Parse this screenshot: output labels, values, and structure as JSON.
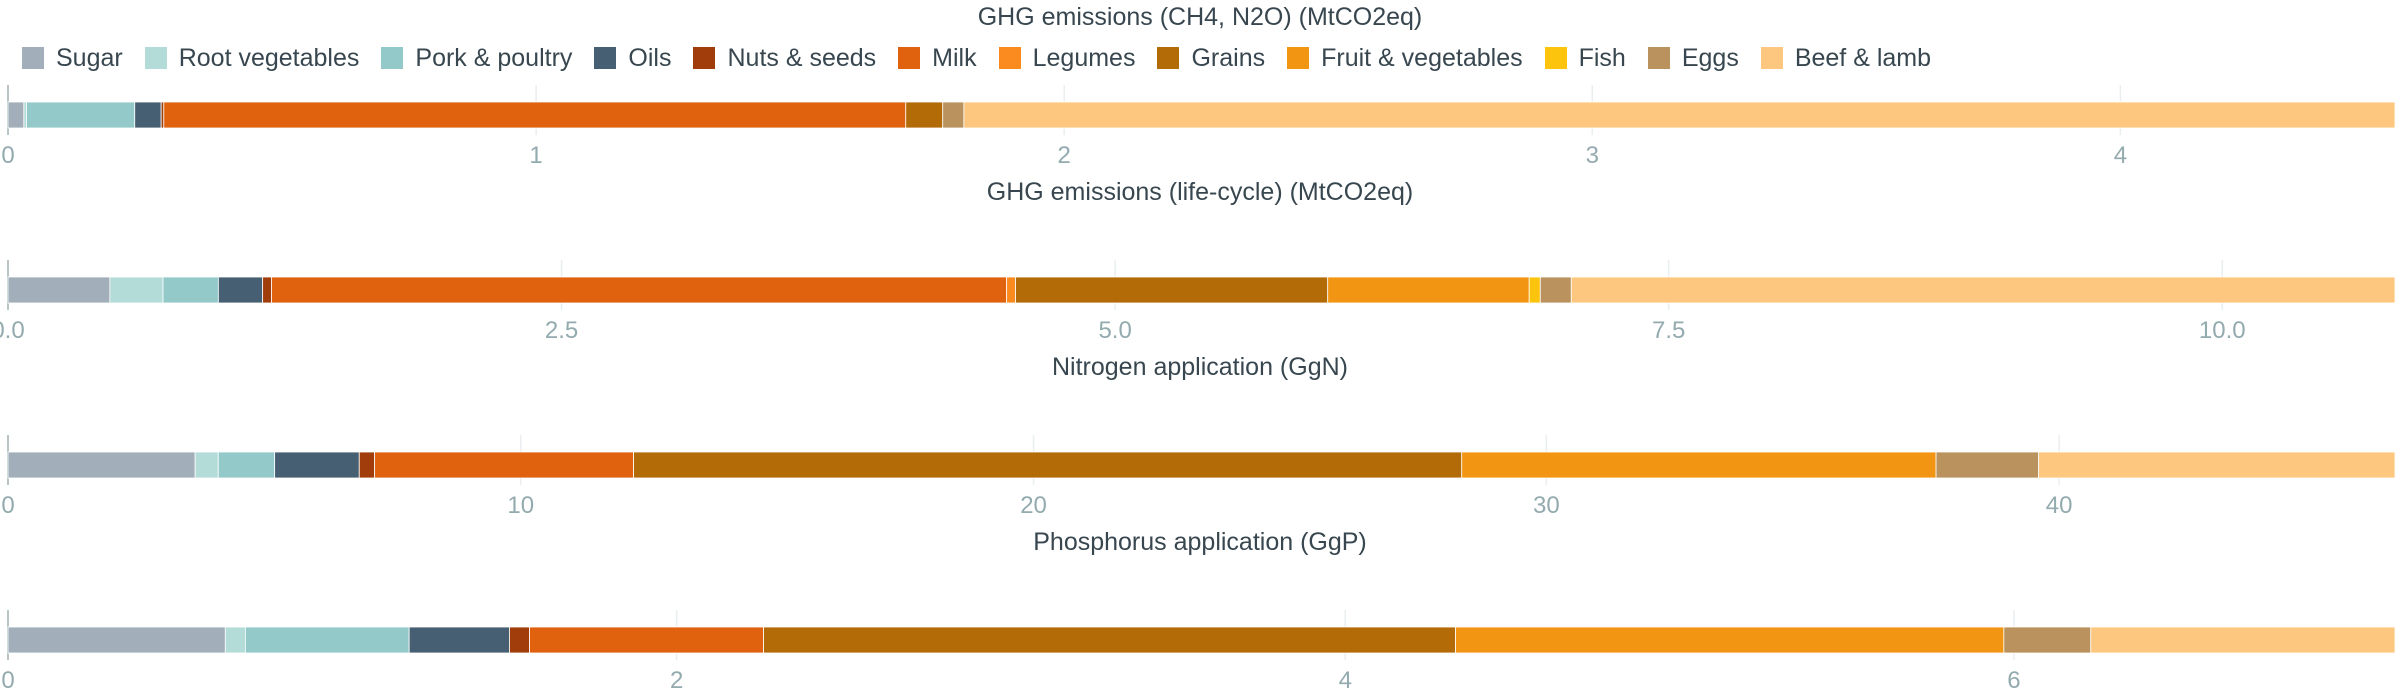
{
  "legend": {
    "items": [
      {
        "name": "Sugar",
        "color": "#a2afbb"
      },
      {
        "name": "Root vegetables",
        "color": "#b3dcd8"
      },
      {
        "name": "Pork & poultry",
        "color": "#94c9c9"
      },
      {
        "name": "Oils",
        "color": "#465f72"
      },
      {
        "name": "Nuts & seeds",
        "color": "#a03d0a"
      },
      {
        "name": "Milk",
        "color": "#e0620f"
      },
      {
        "name": "Legumes",
        "color": "#fb8a1f"
      },
      {
        "name": "Grains",
        "color": "#b36b07"
      },
      {
        "name": "Fruit & vegetables",
        "color": "#f29512"
      },
      {
        "name": "Fish",
        "color": "#fcc40c"
      },
      {
        "name": "Eggs",
        "color": "#b9925d"
      },
      {
        "name": "Beef & lamb",
        "color": "#fdc77f"
      }
    ]
  },
  "chart_data": [
    {
      "type": "bar",
      "orientation": "horizontal",
      "stacked": true,
      "title": "GHG emissions (CH4, N2O) (MtCO2eq)",
      "xlim": [
        0,
        4.52
      ],
      "ticks": [
        0,
        1,
        2,
        3,
        4
      ],
      "tick_labels": [
        "0",
        "1",
        "2",
        "3",
        "4"
      ],
      "series": [
        {
          "name": "Sugar",
          "values": [
            0.03
          ]
        },
        {
          "name": "Root vegetables",
          "values": [
            0.005
          ]
        },
        {
          "name": "Pork & poultry",
          "values": [
            0.205
          ]
        },
        {
          "name": "Oils",
          "values": [
            0.05
          ]
        },
        {
          "name": "Nuts & seeds",
          "values": [
            0.005
          ]
        },
        {
          "name": "Milk",
          "values": [
            1.405
          ]
        },
        {
          "name": "Legumes",
          "values": [
            0.0
          ]
        },
        {
          "name": "Grains",
          "values": [
            0.07
          ]
        },
        {
          "name": "Fruit & vegetables",
          "values": [
            0.0
          ]
        },
        {
          "name": "Fish",
          "values": [
            0.0
          ]
        },
        {
          "name": "Eggs",
          "values": [
            0.04
          ]
        },
        {
          "name": "Beef & lamb",
          "values": [
            2.71
          ]
        }
      ]
    },
    {
      "type": "bar",
      "orientation": "horizontal",
      "stacked": true,
      "title": "GHG emissions (life-cycle) (MtCO2eq)",
      "xlim": [
        0,
        10.78
      ],
      "ticks": [
        0,
        2.5,
        5,
        7.5,
        10
      ],
      "tick_labels": [
        "0.0",
        "2.5",
        "5.0",
        "7.5",
        "10.0"
      ],
      "series": [
        {
          "name": "Sugar",
          "values": [
            0.46
          ]
        },
        {
          "name": "Root vegetables",
          "values": [
            0.24
          ]
        },
        {
          "name": "Pork & poultry",
          "values": [
            0.25
          ]
        },
        {
          "name": "Oils",
          "values": [
            0.2
          ]
        },
        {
          "name": "Nuts & seeds",
          "values": [
            0.04
          ]
        },
        {
          "name": "Milk",
          "values": [
            3.32
          ]
        },
        {
          "name": "Legumes",
          "values": [
            0.04
          ]
        },
        {
          "name": "Grains",
          "values": [
            1.41
          ]
        },
        {
          "name": "Fruit & vegetables",
          "values": [
            0.91
          ]
        },
        {
          "name": "Fish",
          "values": [
            0.05
          ]
        },
        {
          "name": "Eggs",
          "values": [
            0.14
          ]
        },
        {
          "name": "Beef & lamb",
          "values": [
            3.72
          ]
        }
      ]
    },
    {
      "type": "bar",
      "orientation": "horizontal",
      "stacked": true,
      "title": "Nitrogen application (GgN)",
      "xlim": [
        0,
        46.55
      ],
      "ticks": [
        0,
        10,
        20,
        30,
        40
      ],
      "tick_labels": [
        "0",
        "10",
        "20",
        "30",
        "40"
      ],
      "series": [
        {
          "name": "Sugar",
          "values": [
            3.65
          ]
        },
        {
          "name": "Root vegetables",
          "values": [
            0.45
          ]
        },
        {
          "name": "Pork & poultry",
          "values": [
            1.1
          ]
        },
        {
          "name": "Oils",
          "values": [
            1.65
          ]
        },
        {
          "name": "Nuts & seeds",
          "values": [
            0.3
          ]
        },
        {
          "name": "Milk",
          "values": [
            5.05
          ]
        },
        {
          "name": "Legumes",
          "values": [
            0.0
          ]
        },
        {
          "name": "Grains",
          "values": [
            16.15
          ]
        },
        {
          "name": "Fruit & vegetables",
          "values": [
            9.25
          ]
        },
        {
          "name": "Fish",
          "values": [
            0.0
          ]
        },
        {
          "name": "Eggs",
          "values": [
            2.0
          ]
        },
        {
          "name": "Beef & lamb",
          "values": [
            6.95
          ]
        }
      ]
    },
    {
      "type": "bar",
      "orientation": "horizontal",
      "stacked": true,
      "title": "Phosphorus application (GgP)",
      "xlim": [
        0,
        7.14
      ],
      "ticks": [
        0,
        2,
        4,
        6
      ],
      "tick_labels": [
        "0",
        "2",
        "4",
        "6"
      ],
      "series": [
        {
          "name": "Sugar",
          "values": [
            0.65
          ]
        },
        {
          "name": "Root vegetables",
          "values": [
            0.06
          ]
        },
        {
          "name": "Pork & poultry",
          "values": [
            0.49
          ]
        },
        {
          "name": "Oils",
          "values": [
            0.3
          ]
        },
        {
          "name": "Nuts & seeds",
          "values": [
            0.06
          ]
        },
        {
          "name": "Milk",
          "values": [
            0.7
          ]
        },
        {
          "name": "Legumes",
          "values": [
            0.0
          ]
        },
        {
          "name": "Grains",
          "values": [
            2.07
          ]
        },
        {
          "name": "Fruit & vegetables",
          "values": [
            1.64
          ]
        },
        {
          "name": "Fish",
          "values": [
            0.0
          ]
        },
        {
          "name": "Eggs",
          "values": [
            0.26
          ]
        },
        {
          "name": "Beef & lamb",
          "values": [
            0.91
          ]
        }
      ]
    }
  ]
}
